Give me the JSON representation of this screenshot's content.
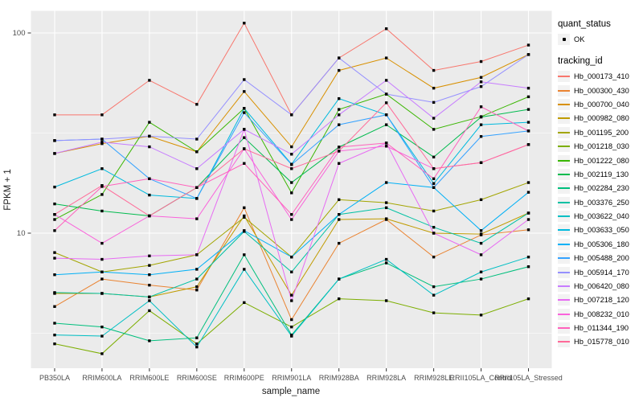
{
  "figure": {
    "x_axis": {
      "title": "sample_name"
    },
    "y_axis": {
      "title": "FPKM + 1",
      "ticks": [
        {
          "label": "100",
          "value": 100
        },
        {
          "label": "10",
          "value": 10
        }
      ]
    },
    "legend": {
      "quant_status": {
        "title": "quant_status",
        "entries": [
          {
            "label": "OK"
          }
        ]
      },
      "tracking_id": {
        "title": "tracking_id"
      }
    }
  },
  "colors": {
    "panel_bg": "#EBEBEB",
    "grid": "#FFFFFF",
    "legend_key_bg": "#F2F2F2",
    "tick_mark": "#333333",
    "tick_label": "#4D4D4D",
    "axis_title": "#1a1a1a",
    "point": "#000000"
  },
  "chart_data": {
    "type": "line",
    "x_type": "categorical",
    "y_scale": "log10",
    "title": "",
    "xlabel": "sample_name",
    "ylabel": "FPKM + 1",
    "ylim": [
      2.1,
      130
    ],
    "grid": "on",
    "legend_position": "right",
    "point_shape": "small black square (quant_status OK)",
    "categories": [
      "PB350LA",
      "RRIM600LA",
      "RRIM600LE",
      "RRIM600SE",
      "RRIM600PE",
      "RRIM901LA",
      "RRIM928BA",
      "RRIM928LA",
      "RRIM928LE",
      "RRII105LA_Control",
      "RRII105LA_Stressed"
    ],
    "series": [
      {
        "name": "Hb_000173_410",
        "color": "#F8766D",
        "values": [
          39,
          39,
          58,
          44,
          112,
          39,
          75,
          105,
          65,
          72,
          87
        ]
      },
      {
        "name": "Hb_000300_430",
        "color": "#EA8331",
        "values": [
          4.3,
          5.9,
          5.5,
          5.2,
          13.4,
          3.7,
          8.9,
          11.7,
          7.6,
          9.8,
          10.4
        ]
      },
      {
        "name": "Hb_000700_040",
        "color": "#D89000",
        "values": [
          25,
          28,
          30.5,
          25.5,
          51,
          27,
          65,
          75,
          53,
          60,
          78
        ]
      },
      {
        "name": "Hb_000982_080",
        "color": "#C09B00",
        "values": [
          5.0,
          5.0,
          4.8,
          5.4,
          12.2,
          4.9,
          11.7,
          11.8,
          10.0,
          9.9,
          12.6
        ]
      },
      {
        "name": "Hb_001195_200",
        "color": "#A3A500",
        "values": [
          8.0,
          6.4,
          6.9,
          7.8,
          12.0,
          7.6,
          14.7,
          14.2,
          12.9,
          14.7,
          17.9
        ]
      },
      {
        "name": "Hb_001218_030",
        "color": "#7CAE00",
        "values": [
          2.8,
          2.5,
          4.1,
          2.8,
          4.5,
          3.4,
          4.7,
          4.6,
          4.0,
          3.9,
          4.7
        ]
      },
      {
        "name": "Hb_001222_080",
        "color": "#39B600",
        "values": [
          11.7,
          15.6,
          35.8,
          25.5,
          42,
          15.9,
          41.5,
          49.5,
          33,
          38.2,
          48
        ]
      },
      {
        "name": "Hb_002119_130",
        "color": "#00BB4E",
        "values": [
          14,
          12.9,
          12.2,
          16.9,
          30,
          17.9,
          26.9,
          34.8,
          24,
          38,
          41.5
        ]
      },
      {
        "name": "Hb_002284_230",
        "color": "#00BF7D",
        "values": [
          3.55,
          3.4,
          2.9,
          3.0,
          7.8,
          3.1,
          5.9,
          7.1,
          5.4,
          5.9,
          6.8
        ]
      },
      {
        "name": "Hb_003376_250",
        "color": "#00C1A3",
        "values": [
          5.05,
          5.0,
          4.8,
          5.9,
          10.2,
          6.4,
          12.4,
          13.4,
          10.7,
          8.9,
          12.6
        ]
      },
      {
        "name": "Hb_003622_040",
        "color": "#00BFC4",
        "values": [
          3.1,
          3.06,
          4.6,
          2.7,
          6.6,
          3.06,
          5.9,
          7.4,
          4.9,
          6.4,
          7.6
        ]
      },
      {
        "name": "Hb_003633_050",
        "color": "#00BADE",
        "values": [
          17,
          21,
          15.5,
          14.9,
          42,
          22.1,
          47,
          39,
          17.7,
          34.8,
          35.8
        ]
      },
      {
        "name": "Hb_005306_180",
        "color": "#00B0F6",
        "values": [
          6.2,
          6.4,
          6.2,
          6.6,
          10.3,
          7.6,
          12.4,
          17.9,
          16.9,
          10.3,
          16
        ]
      },
      {
        "name": "Hb_005488_200",
        "color": "#35A2FF",
        "values": [
          29,
          29.5,
          18.7,
          14.9,
          40,
          22,
          34.8,
          39,
          16.9,
          30.4,
          32.4
        ]
      },
      {
        "name": "Hb_005914_170",
        "color": "#9590FF",
        "values": [
          29,
          29.5,
          30.5,
          29.5,
          58.5,
          39,
          75,
          49.5,
          45,
          54,
          78
        ]
      },
      {
        "name": "Hb_006420_080",
        "color": "#C77CFF",
        "values": [
          25,
          28.5,
          27,
          21,
          33,
          24.8,
          39,
          58,
          37.5,
          57,
          53
        ]
      },
      {
        "name": "Hb_007218_120",
        "color": "#E76BF3",
        "values": [
          7.5,
          7.4,
          7.7,
          7.8,
          33,
          4.6,
          22.3,
          28.2,
          10,
          7.8,
          11.7
        ]
      },
      {
        "name": "Hb_008232_010",
        "color": "#FA62DB",
        "values": [
          12.4,
          8.9,
          12.2,
          11.8,
          26.4,
          11.7,
          25.7,
          27.2,
          21,
          22.5,
          27.7
        ]
      },
      {
        "name": "Hb_011344_190",
        "color": "#FF62BC",
        "values": [
          10.3,
          17.1,
          18.7,
          16.9,
          22.3,
          12.4,
          26.9,
          28.2,
          18.7,
          42.8,
          32.4
        ]
      },
      {
        "name": "Hb_015778_010",
        "color": "#FF6A98",
        "values": [
          12.4,
          17.3,
          12.2,
          16.9,
          26.4,
          21,
          25.7,
          44.8,
          21,
          22.5,
          27.7
        ]
      }
    ]
  }
}
